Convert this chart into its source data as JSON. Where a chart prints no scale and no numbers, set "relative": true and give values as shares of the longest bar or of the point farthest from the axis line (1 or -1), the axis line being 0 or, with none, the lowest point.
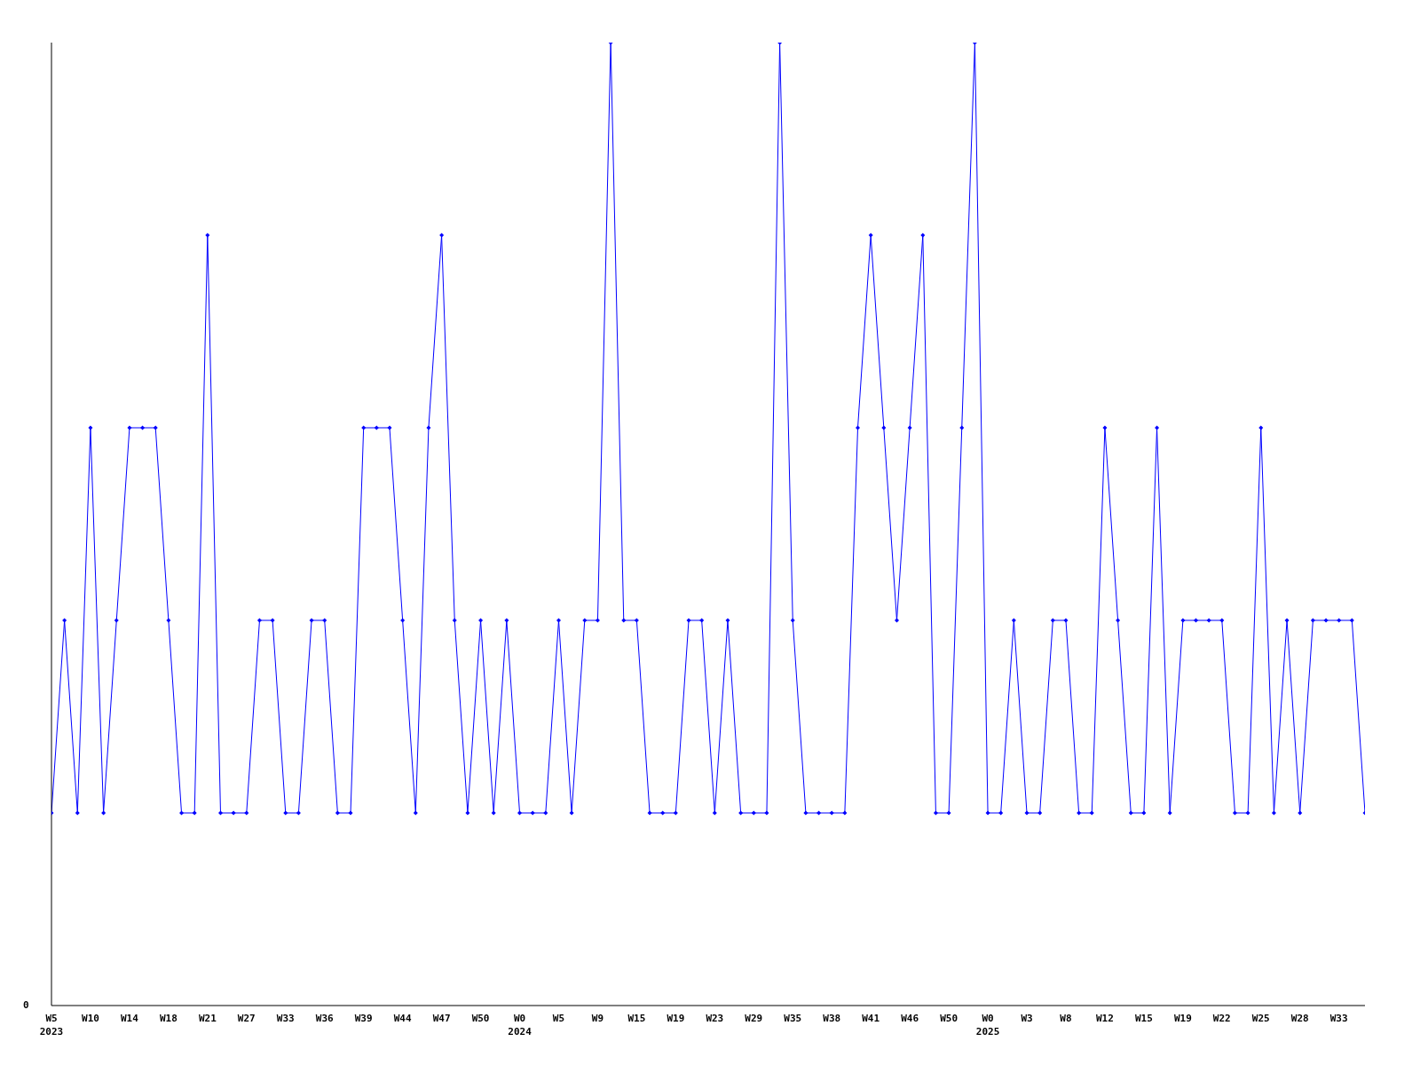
{
  "chart_data": {
    "type": "line",
    "relative": true,
    "annotations": [
      "0"
    ],
    "marker": "diamond",
    "line_style": "solid",
    "grid": false,
    "legend": false,
    "categories": [
      "W5\n2023",
      null,
      null,
      "W10",
      null,
      null,
      "W14",
      null,
      null,
      "W18",
      null,
      null,
      "W21",
      null,
      null,
      "W27",
      null,
      null,
      "W33",
      null,
      null,
      "W36",
      null,
      null,
      "W39",
      null,
      null,
      "W44",
      null,
      null,
      "W47",
      null,
      null,
      "W50",
      null,
      null,
      "W0\n2024",
      null,
      null,
      "W5",
      null,
      null,
      "W9",
      null,
      null,
      "W15",
      null,
      null,
      "W19",
      null,
      null,
      "W23",
      null,
      null,
      "W29",
      null,
      null,
      "W35",
      null,
      null,
      "W38",
      null,
      null,
      "W41",
      null,
      null,
      "W46",
      null,
      null,
      "W50",
      null,
      null,
      "W0\n2025",
      null,
      null,
      "W3",
      null,
      null,
      "W8",
      null,
      null,
      "W12",
      null,
      null,
      "W15",
      null,
      null,
      "W19",
      null,
      null,
      "W22",
      null,
      null,
      "W25",
      null,
      null,
      "W28",
      null,
      null,
      "W33",
      null,
      null
    ],
    "series": [
      {
        "color": "#0000ff",
        "values": [
          0.2,
          0.4,
          0.2,
          0.6,
          0.2,
          0.4,
          0.6,
          0.6,
          0.6,
          0.4,
          0.2,
          0.2,
          0.8,
          0.2,
          0.2,
          0.2,
          0.4,
          0.4,
          0.2,
          0.2,
          0.4,
          0.4,
          0.2,
          0.2,
          0.6,
          0.6,
          0.6,
          0.4,
          0.2,
          0.6,
          0.8,
          0.4,
          0.2,
          0.4,
          0.2,
          0.4,
          0.2,
          0.2,
          0.2,
          0.4,
          0.2,
          0.4,
          0.4,
          1,
          0.4,
          0.4,
          0.2,
          0.2,
          0.2,
          0.4,
          0.4,
          0.2,
          0.4,
          0.2,
          0.2,
          0.2,
          1,
          0.4,
          0.2,
          0.2,
          0.2,
          0.2,
          0.6,
          0.8,
          0.6,
          0.4,
          0.6,
          0.8,
          0.2,
          0.2,
          0.6,
          1,
          0.2,
          0.2,
          0.4,
          0.2,
          0.2,
          0.4,
          0.4,
          0.2,
          0.2,
          0.6,
          0.4,
          0.2,
          0.2,
          0.6,
          0.2,
          0.4,
          0.4,
          0.4,
          0.4,
          0.2,
          0.2,
          0.6,
          0.2,
          0.4,
          0.2,
          0.4,
          0.4,
          0.4,
          0.4,
          0.2
        ]
      }
    ]
  }
}
